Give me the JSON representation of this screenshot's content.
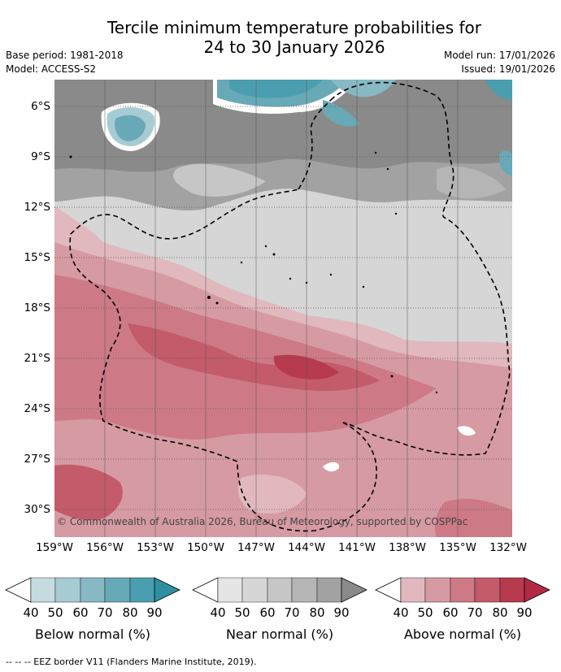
{
  "title": "Tercile minimum temperature probabilities for\n24 to 30 January 2026",
  "meta": {
    "base_period": "Base period: 1981-2018",
    "model": "Model: ACCESS-S2",
    "model_run": "Model run: 17/01/2026",
    "issued": "Issued: 19/01/2026"
  },
  "map": {
    "copyright": "© Commonwealth of Australia 2026, Bureau of Meteorology, supported by COSPPac",
    "lat_labels": [
      "6°S",
      "9°S",
      "12°S",
      "15°S",
      "18°S",
      "21°S",
      "24°S",
      "27°S",
      "30°S"
    ],
    "lon_labels": [
      "159°W",
      "156°W",
      "153°W",
      "150°W",
      "147°W",
      "144°W",
      "141°W",
      "138°W",
      "135°W",
      "132°W"
    ]
  },
  "legend": {
    "ticks": [
      "40",
      "50",
      "60",
      "70",
      "80",
      "90"
    ],
    "below": {
      "label": "Below normal (%)",
      "colors": [
        "#c6dbe0",
        "#a6cbd3",
        "#87b8c4",
        "#68a9b7",
        "#4a9eaf",
        "#2e8fa2"
      ]
    },
    "near": {
      "label": "Near normal (%)",
      "colors": [
        "#e5e5e5",
        "#d6d6d6",
        "#c6c6c6",
        "#b5b5b5",
        "#a2a2a2",
        "#8a8a8a"
      ]
    },
    "above": {
      "label": "Above normal (%)",
      "colors": [
        "#e0b8bd",
        "#d69aa2",
        "#cd7a86",
        "#c35b6a",
        "#b73a4e",
        "#b22a45"
      ]
    }
  },
  "footer": "--  --  -- EEZ border V11 (Flanders Marine Institute, 2019)."
}
